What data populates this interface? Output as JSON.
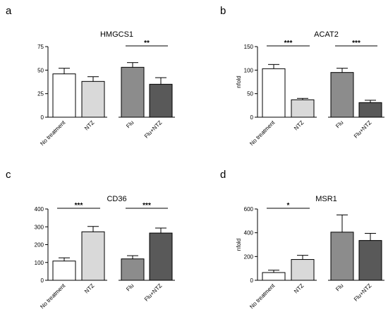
{
  "chart_data": [
    {
      "type": "bar",
      "panel": "a",
      "title": "HMGCS1",
      "ylabel": "",
      "ylim": [
        0,
        75
      ],
      "yticks": [
        0,
        25,
        50,
        75
      ],
      "categories": [
        "No treatment",
        "NTZ",
        "Flu",
        "Flu+NTZ"
      ],
      "values": [
        46,
        38,
        53,
        35
      ],
      "errors": [
        6,
        5,
        5,
        7
      ],
      "colors": [
        "#ffffff",
        "#d9d9d9",
        "#8c8c8c",
        "#595959"
      ],
      "significance": [
        {
          "from": 2,
          "to": 3,
          "label": "**"
        }
      ]
    },
    {
      "type": "bar",
      "panel": "b",
      "title": "ACAT2",
      "ylabel": "nfold",
      "ylim": [
        0,
        150
      ],
      "yticks": [
        0,
        50,
        100,
        150
      ],
      "categories": [
        "No treatment",
        "NTZ",
        "Flu",
        "Flu+NTZ"
      ],
      "values": [
        103,
        37,
        95,
        31
      ],
      "errors": [
        9,
        3,
        9,
        5
      ],
      "colors": [
        "#ffffff",
        "#d9d9d9",
        "#8c8c8c",
        "#595959"
      ],
      "significance": [
        {
          "from": 0,
          "to": 1,
          "label": "***"
        },
        {
          "from": 2,
          "to": 3,
          "label": "***"
        }
      ]
    },
    {
      "type": "bar",
      "panel": "c",
      "title": "CD36",
      "ylabel": "",
      "ylim": [
        0,
        400
      ],
      "yticks": [
        0,
        100,
        200,
        300,
        400
      ],
      "categories": [
        "No treatment",
        "NTZ",
        "Flu",
        "Flu+NTZ"
      ],
      "values": [
        108,
        272,
        120,
        265
      ],
      "errors": [
        18,
        30,
        18,
        28
      ],
      "colors": [
        "#ffffff",
        "#d9d9d9",
        "#8c8c8c",
        "#595959"
      ],
      "significance": [
        {
          "from": 0,
          "to": 1,
          "label": "***"
        },
        {
          "from": 2,
          "to": 3,
          "label": "***"
        }
      ]
    },
    {
      "type": "bar",
      "panel": "d",
      "title": "MSR1",
      "ylabel": "nfold",
      "ylim": [
        0,
        600
      ],
      "yticks": [
        0,
        200,
        400,
        600
      ],
      "categories": [
        "No treatment",
        "NTZ",
        "Flu",
        "Flu+NTZ"
      ],
      "values": [
        65,
        175,
        405,
        335
      ],
      "errors": [
        20,
        35,
        145,
        60
      ],
      "colors": [
        "#ffffff",
        "#d9d9d9",
        "#8c8c8c",
        "#595959"
      ],
      "significance": [
        {
          "from": 0,
          "to": 1,
          "label": "*"
        }
      ]
    }
  ]
}
